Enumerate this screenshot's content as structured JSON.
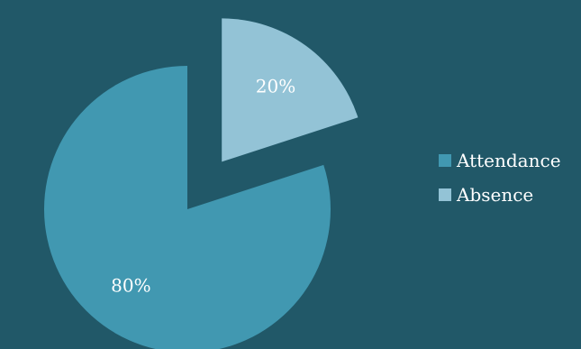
{
  "background": "#215868",
  "chart_data": {
    "type": "pie",
    "exploded": true,
    "categories": [
      "Attendance",
      "Absence"
    ],
    "values": [
      80,
      20
    ],
    "labels": [
      "80%",
      "20%"
    ],
    "colors": [
      "#4198b1",
      "#93c3d6"
    ],
    "legend": {
      "placement": "right",
      "entries": [
        "Attendance",
        "Absence"
      ]
    }
  }
}
